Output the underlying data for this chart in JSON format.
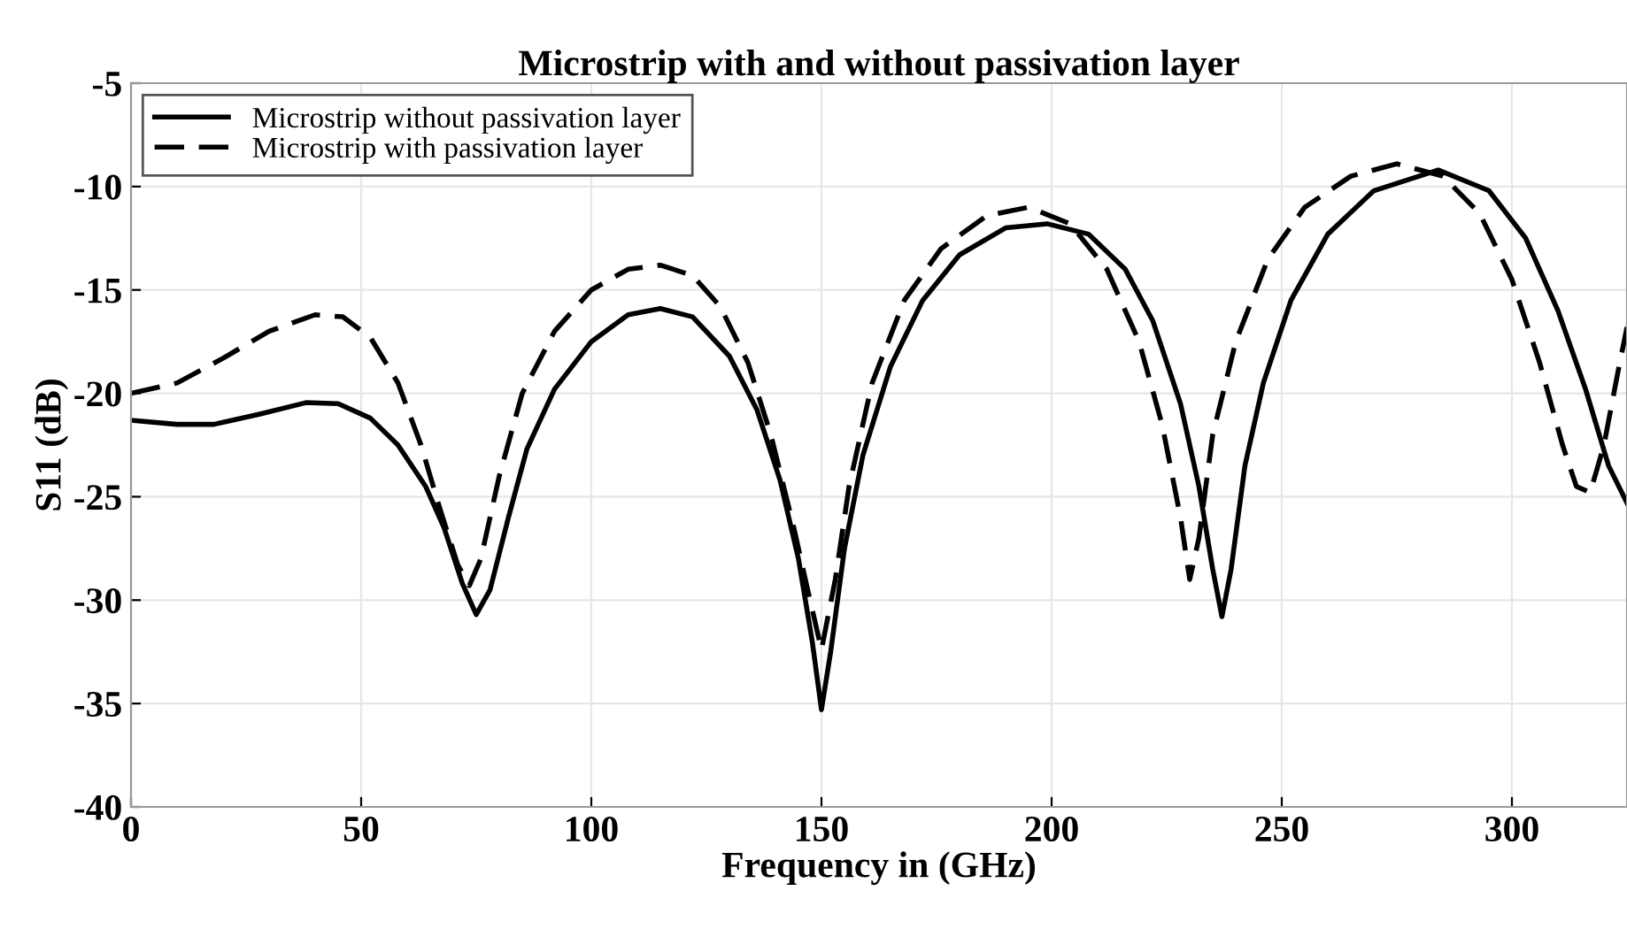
{
  "chart_data": {
    "type": "line",
    "title": "Microstrip with and without passivation layer",
    "xlabel": "Frequency in (GHz)",
    "ylabel": "S11 (dB)",
    "xlim": [
      0,
      325
    ],
    "ylim": [
      -40,
      -5
    ],
    "xticks": [
      0,
      50,
      100,
      150,
      200,
      250,
      300
    ],
    "yticks": [
      -40,
      -35,
      -30,
      -25,
      -20,
      -15,
      -10,
      -5
    ],
    "grid": true,
    "legend": "top left",
    "marker": "none",
    "series": [
      {
        "name": "Microstrip without passivation layer",
        "color": "#000000",
        "line_style": "solid",
        "x": [
          0,
          10,
          18,
          28,
          38,
          45,
          52,
          58,
          64,
          68,
          72,
          75,
          78,
          82,
          86,
          92,
          100,
          108,
          115,
          122,
          130,
          136,
          141,
          145,
          148,
          150,
          152,
          155,
          159,
          165,
          172,
          180,
          190,
          199,
          208,
          216,
          222,
          228,
          232,
          235,
          237,
          239,
          242,
          246,
          252,
          260,
          270,
          284,
          295,
          303,
          310,
          316,
          321,
          325
        ],
        "values": [
          -21.3,
          -21.5,
          -21.5,
          -21.0,
          -20.45,
          -20.5,
          -21.2,
          -22.5,
          -24.5,
          -26.5,
          -29.2,
          -30.7,
          -29.5,
          -26,
          -22.7,
          -19.8,
          -17.5,
          -16.2,
          -15.9,
          -16.3,
          -18.2,
          -20.8,
          -24.2,
          -28,
          -32,
          -35.3,
          -32.5,
          -27.5,
          -23,
          -18.7,
          -15.5,
          -13.3,
          -12,
          -11.8,
          -12.3,
          -14,
          -16.5,
          -20.5,
          -24.5,
          -28.5,
          -30.8,
          -28.5,
          -23.5,
          -19.5,
          -15.5,
          -12.3,
          -10.2,
          -9.2,
          -10.2,
          -12.5,
          -16,
          -19.8,
          -23.5,
          -25.3
        ]
      },
      {
        "name": "Microstrip with passivation layer",
        "color": "#000000",
        "line_style": "dashed",
        "x": [
          0,
          10,
          20,
          30,
          40,
          46,
          52,
          58,
          63,
          67,
          71,
          73.5,
          76,
          80,
          85,
          92,
          100,
          108,
          115,
          122,
          128,
          134,
          139,
          144,
          147,
          150,
          153,
          156,
          161,
          168,
          176,
          186,
          195,
          204,
          212,
          219,
          224,
          228,
          230,
          232,
          235,
          240,
          247,
          255,
          265,
          275,
          285,
          293,
          300,
          306,
          311,
          314,
          317,
          320,
          323,
          325
        ],
        "values": [
          -20,
          -19.5,
          -18.3,
          -17,
          -16.2,
          -16.3,
          -17.3,
          -19.5,
          -22.5,
          -25.5,
          -28.3,
          -29.3,
          -28,
          -24,
          -20,
          -17,
          -15,
          -14,
          -13.8,
          -14.3,
          -15.8,
          -18.5,
          -22,
          -26.5,
          -29.5,
          -32.4,
          -29,
          -24.5,
          -19.5,
          -15.5,
          -13,
          -11.4,
          -11,
          -11.8,
          -14,
          -17.5,
          -21.5,
          -26,
          -29,
          -27,
          -22,
          -17.5,
          -13.5,
          -11,
          -9.5,
          -8.9,
          -9.5,
          -11.3,
          -14.5,
          -18.5,
          -22.5,
          -24.5,
          -24.8,
          -22.5,
          -19,
          -16.8
        ]
      }
    ]
  }
}
